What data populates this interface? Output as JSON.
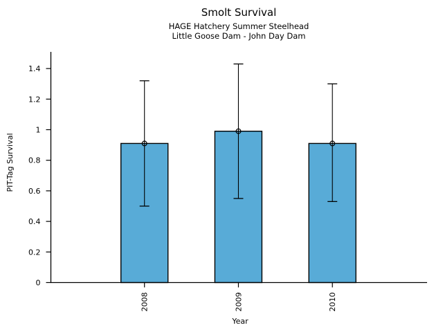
{
  "chart_data": {
    "type": "bar",
    "title": "Smolt Survival",
    "subtitle_line1": "HAGE Hatchery Summer Steelhead",
    "subtitle_line2": "Little Goose Dam - John Day Dam",
    "xlabel": "Year",
    "ylabel": "PIT-Tag Survival",
    "categories": [
      "2008",
      "2009",
      "2010"
    ],
    "series": [
      {
        "name": "PIT-Tag Survival",
        "values": [
          0.91,
          0.99,
          0.91
        ],
        "error_low": [
          0.5,
          0.55,
          0.53
        ],
        "error_high": [
          1.32,
          1.43,
          1.3
        ]
      }
    ],
    "ylim": [
      0,
      1.45
    ],
    "yticks": [
      0,
      0.2,
      0.4,
      0.6,
      0.8,
      1.0,
      1.2,
      1.4
    ],
    "ytick_labels": [
      "0",
      "0.2",
      "0.4",
      "0.6",
      "0.8",
      "1",
      "1.2",
      "1.4"
    ],
    "bar_fill_color": "#58ABD7",
    "bar_edge_color": "#000000",
    "error_bar_color": "#000000",
    "axis_color": "#000000",
    "background_color": "#FFFFFF",
    "marker": "open-circle",
    "grid": false,
    "legend": "none"
  }
}
